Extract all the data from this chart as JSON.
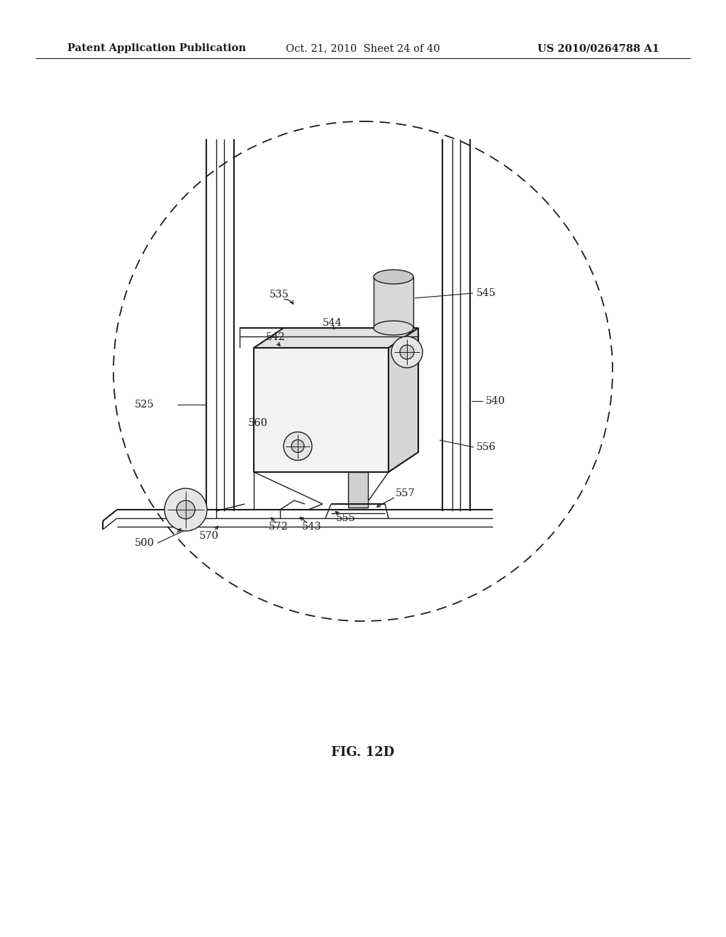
{
  "bg_color": "#ffffff",
  "header_left": "Patent Application Publication",
  "header_center": "Oct. 21, 2010  Sheet 24 of 40",
  "header_right": "US 2010/0264788 A1",
  "figure_label": "FIG. 12D",
  "line_color": "#1a1a1a",
  "text_color": "#1a1a1a",
  "header_fontsize": 10.5,
  "label_fontsize": 10.5,
  "fig_label_fontsize": 13
}
